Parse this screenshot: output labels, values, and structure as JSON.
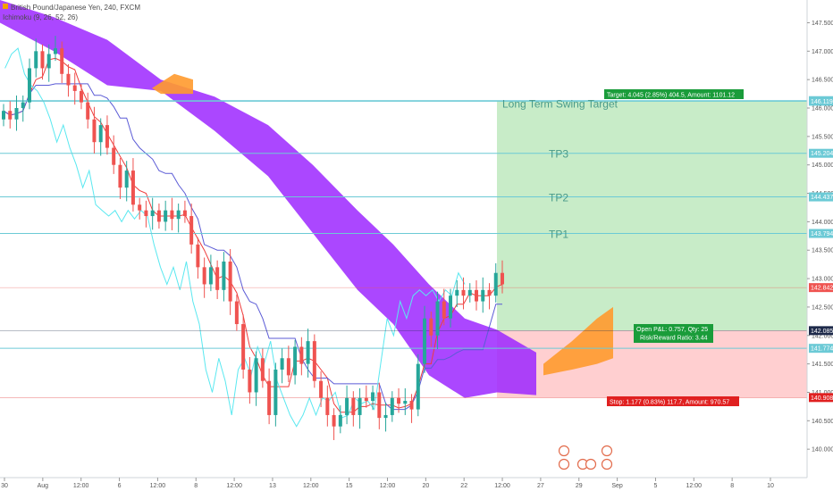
{
  "header": {
    "symbol_line": "British Pound/Japanese Yen, 240, FXCM",
    "indicator_line": "Ichimoku (9, 26, 52, 26)"
  },
  "colors": {
    "bull": "#26a69a",
    "bear": "#ef5350",
    "cloud_bear": "#9c27ff",
    "cloud_bull": "#ff9a2e",
    "tenkan": "#ef3b3b",
    "kijun": "#5b5bd6",
    "chikou": "#5ae8f0",
    "level_line": "#6ccad6",
    "target_zone": "#c8ecc8",
    "stop_zone": "#ffcfd0",
    "target_tag": "#1a9c3a",
    "stop_tag": "#e02020"
  },
  "chart_data": {
    "type": "candlestick",
    "ylim": [
      139.5,
      147.9
    ],
    "y_ticks": [
      140.0,
      140.5,
      141.0,
      141.5,
      142.0,
      142.5,
      143.0,
      143.5,
      144.0,
      144.5,
      145.0,
      145.5,
      146.0,
      146.5,
      147.0,
      147.5
    ],
    "x_ticks": [
      "30",
      "Aug",
      "12:00",
      "6",
      "12:00",
      "8",
      "12:00",
      "13",
      "12:00",
      "15",
      "12:00",
      "20",
      "22",
      "12:00",
      "27",
      "29",
      "Sep",
      "5",
      "12:00",
      "8",
      "10"
    ],
    "candles_close": [
      145.95,
      145.8,
      146.0,
      146.1,
      146.7,
      147.0,
      146.7,
      146.95,
      147.05,
      146.6,
      146.4,
      146.3,
      146.1,
      145.8,
      145.4,
      145.7,
      145.3,
      145.0,
      144.6,
      144.9,
      144.3,
      144.2,
      144.1,
      144.2,
      144.0,
      144.2,
      144.05,
      144.2,
      144.1,
      143.6,
      143.2,
      142.9,
      143.2,
      142.8,
      143.3,
      142.6,
      142.2,
      141.4,
      141.0,
      141.6,
      141.2,
      140.6,
      141.4,
      141.6,
      141.3,
      141.8,
      141.5,
      141.9,
      141.2,
      140.9,
      140.6,
      140.4,
      140.6,
      140.9,
      140.6,
      140.9,
      140.85,
      141.0,
      140.55,
      140.6,
      140.9,
      140.8,
      140.85,
      140.7,
      141.5,
      142.3,
      142.0,
      142.6,
      142.3,
      142.7,
      142.8,
      142.7,
      142.8,
      142.6,
      142.8,
      142.7,
      143.1,
      142.9
    ],
    "candles_open": [
      145.8,
      145.95,
      145.8,
      146.0,
      146.1,
      146.7,
      147.0,
      146.7,
      146.95,
      147.05,
      146.6,
      146.4,
      146.3,
      146.1,
      145.8,
      145.4,
      145.7,
      145.3,
      145.0,
      144.6,
      144.9,
      144.3,
      144.2,
      144.1,
      144.2,
      144.0,
      144.2,
      144.05,
      144.2,
      144.1,
      143.6,
      143.2,
      142.9,
      143.2,
      142.8,
      143.3,
      142.6,
      142.2,
      141.4,
      141.0,
      141.6,
      141.2,
      140.6,
      141.4,
      141.6,
      141.3,
      141.8,
      141.5,
      141.9,
      141.2,
      140.9,
      140.6,
      140.4,
      140.6,
      140.9,
      140.6,
      140.9,
      140.85,
      141.0,
      140.55,
      140.6,
      140.9,
      140.8,
      140.85,
      140.7,
      141.5,
      142.3,
      142.0,
      142.6,
      142.3,
      142.7,
      142.8,
      142.7,
      142.8,
      142.6,
      142.8,
      142.7,
      143.1
    ],
    "current_price": 142.842,
    "horizontal_levels": [
      {
        "label": "Long Term Swing Target",
        "price": 146.13,
        "tag": "146.130"
      },
      {
        "label": "",
        "price": 146.119,
        "tag": "146.119"
      },
      {
        "label": "TP3",
        "price": 145.204,
        "tag": "145.204"
      },
      {
        "label": "TP2",
        "price": 144.437,
        "tag": "144.437"
      },
      {
        "label": "TP1",
        "price": 143.794,
        "tag": "143.794"
      },
      {
        "label": "",
        "price": 141.774,
        "tag": "141.774"
      }
    ],
    "position": {
      "entry": 142.085,
      "entry_tag": "142.085",
      "target": 146.13,
      "stop": 140.908,
      "stop_tag": "140.908",
      "current_tag": "142.842"
    },
    "annotations": {
      "target": "Target: 4.045 (2.85%) 404.5, Amount: 1101.12",
      "open_pnl": "Open P&L: 0.757, Qty: 25",
      "risk_reward": "Risk/Reward Ratio: 3.44",
      "stop": "Stop: 1.177 (0.83%) 117.7, Amount: 970.57"
    }
  }
}
